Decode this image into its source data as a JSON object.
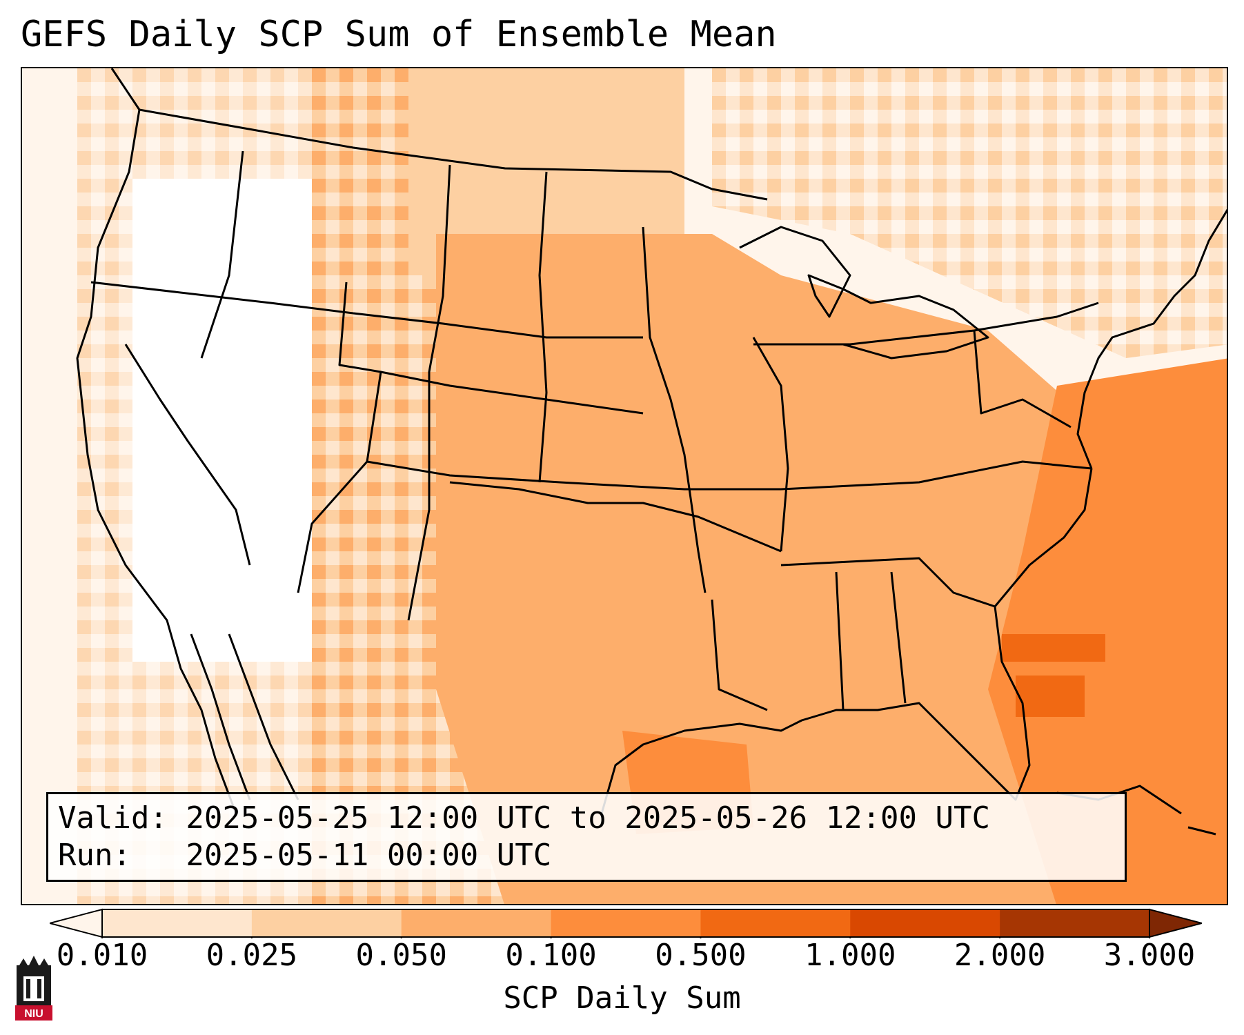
{
  "title": "GEFS Daily SCP Sum of Ensemble Mean",
  "valid_line": "Valid: 2025-05-25 12:00 UTC to 2025-05-26 12:00 UTC",
  "run_line": "Run:   2025-05-11 00:00 UTC",
  "colorbar": {
    "label": "SCP Daily Sum",
    "ticks": [
      "0.010",
      "0.025",
      "0.050",
      "0.100",
      "0.500",
      "1.000",
      "2.000",
      "3.000"
    ],
    "colors": [
      "#fff5eb",
      "#fee6ce",
      "#fdd0a2",
      "#fdae6b",
      "#fd8d3c",
      "#f16913",
      "#d94801",
      "#a63603"
    ],
    "extend": "both"
  },
  "logo_text": "NIU",
  "colors": {
    "outline": "#000000",
    "water": "#ffffff",
    "land_low": "#fdae6b",
    "land_high": "#fd8d3c"
  }
}
